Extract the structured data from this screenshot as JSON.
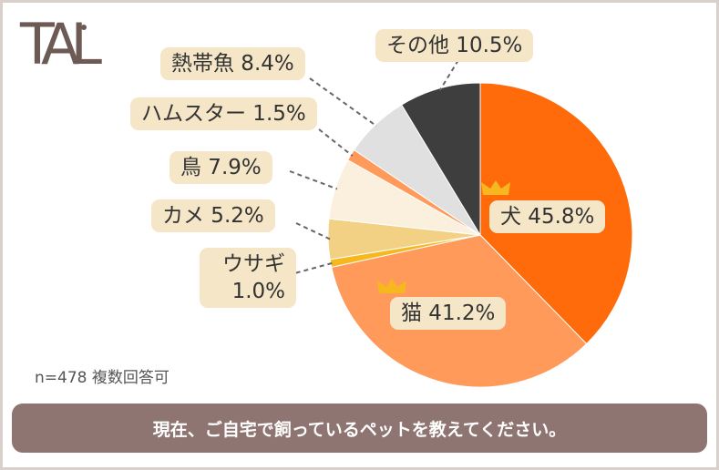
{
  "logo_text": "TAL",
  "question": "現在、ご自宅で飼っているペットを教えてください。",
  "sample_note": "n=478 複数回答可",
  "chart_data": {
    "type": "pie",
    "title": "現在、ご自宅で飼っているペットを教えてください。",
    "series": [
      {
        "name": "犬",
        "value": 45.8,
        "color": "#ff6b0a",
        "label": "犬 45.8%"
      },
      {
        "name": "猫",
        "value": 41.2,
        "color": "#ff9a5a",
        "label": "猫 41.2%"
      },
      {
        "name": "ウサギ",
        "value": 1.0,
        "color": "#f6b81e",
        "label": "ウサギ 1.0%"
      },
      {
        "name": "カメ",
        "value": 5.2,
        "color": "#f3d184",
        "label": "カメ 5.2%"
      },
      {
        "name": "鳥",
        "value": 7.9,
        "color": "#faf0dd",
        "label": "鳥 7.9%"
      },
      {
        "name": "ハムスター",
        "value": 1.5,
        "color": "#ff9a5a",
        "label": "ハムスター 1.5%"
      },
      {
        "name": "熱帯魚",
        "value": 8.4,
        "color": "#e0e0e0",
        "label": "熱帯魚 8.4%"
      },
      {
        "name": "その他",
        "value": 10.5,
        "color": "#3e3e3e",
        "label": "その他 10.5%"
      }
    ],
    "total_responses": 478,
    "crowns": [
      "犬",
      "猫"
    ]
  }
}
